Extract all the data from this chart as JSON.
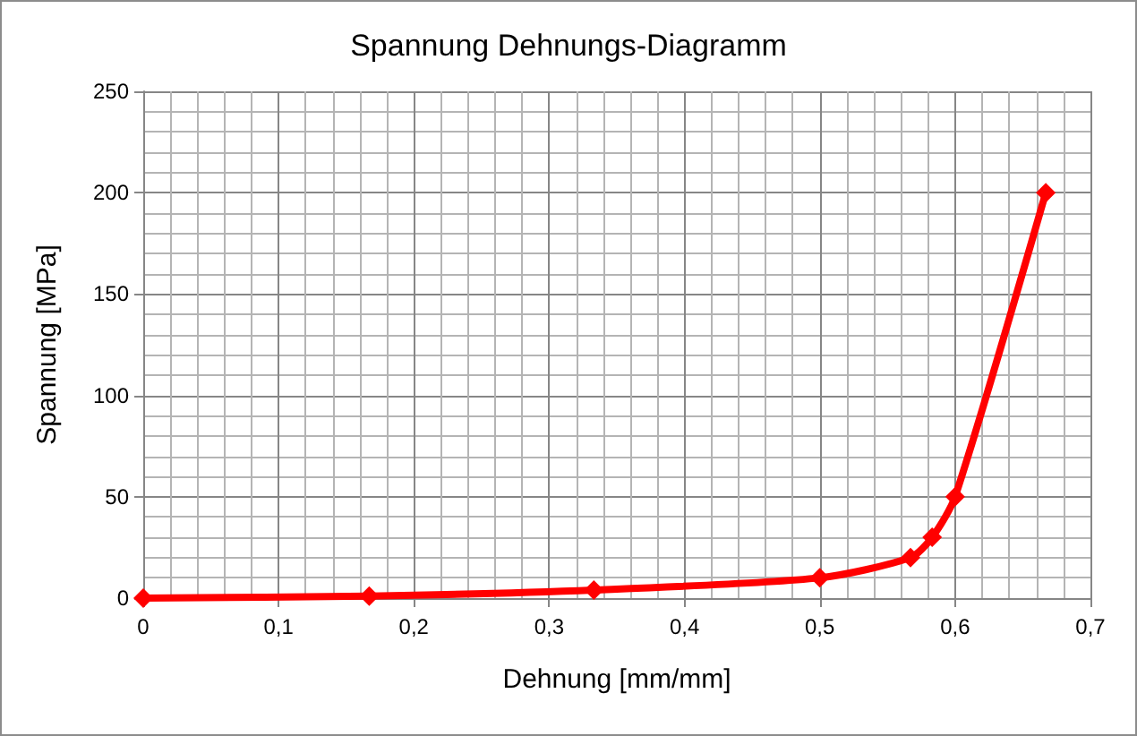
{
  "chart_data": {
    "type": "line",
    "title": "Spannung Dehnungs-Diagramm",
    "xlabel": "Dehnung [mm/mm]",
    "ylabel": "Spannung [MPa]",
    "x": [
      0,
      0.167,
      0.333,
      0.5,
      0.567,
      0.583,
      0.6,
      0.667
    ],
    "series": [
      {
        "color": "#ff0000",
        "values": [
          0,
          1,
          4,
          10,
          20,
          30,
          50,
          200
        ]
      }
    ],
    "xlim": [
      0,
      0.7
    ],
    "xticks": [
      0,
      {
        "value": 0.1,
        "label": "0,1"
      },
      {
        "value": 0.2,
        "label": "0,2"
      },
      {
        "value": 0.3,
        "label": "0,3"
      },
      {
        "value": 0.4,
        "label": "0,4"
      },
      {
        "value": 0.5,
        "label": "0,5"
      },
      {
        "value": 0.6,
        "label": "0,6"
      },
      {
        "value": 0.7,
        "label": "0,7"
      }
    ],
    "ylim": [
      0,
      250
    ],
    "yticks": [
      0,
      50,
      100,
      150,
      200,
      250
    ],
    "grid": true,
    "marker": "diamond",
    "line_style": "solid"
  }
}
